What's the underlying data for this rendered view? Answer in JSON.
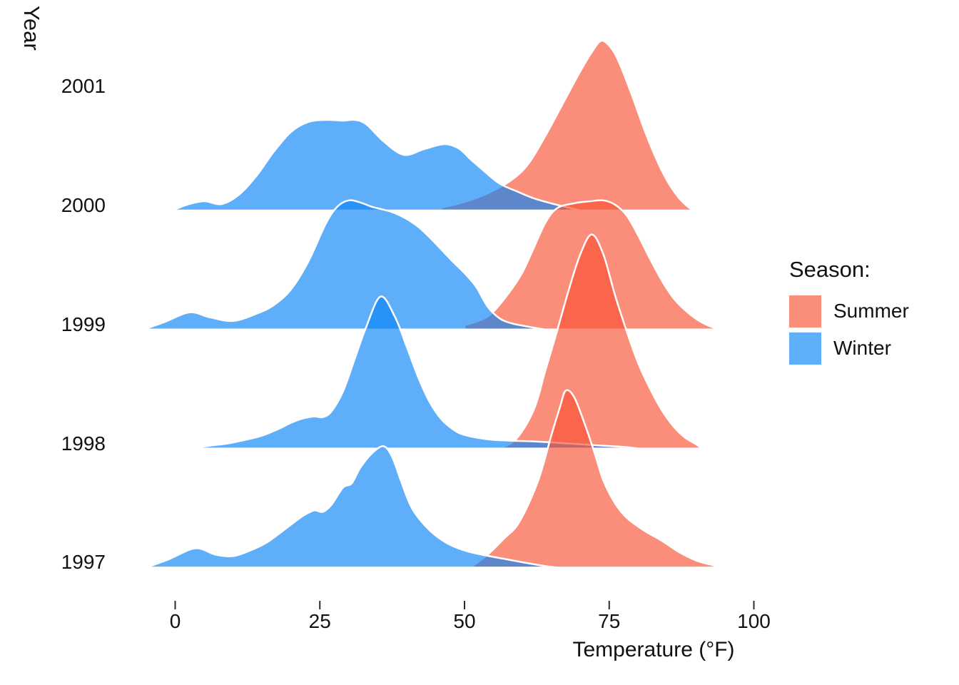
{
  "chart_data": {
    "type": "area",
    "variant": "ridgeline-density",
    "title": "",
    "xlabel": "Temperature (°F)",
    "ylabel": "Year",
    "x_ticks": [
      0,
      25,
      50,
      75,
      100
    ],
    "x_tick_labels": [
      "0",
      "25",
      "50",
      "75",
      "100"
    ],
    "xlim": [
      -8,
      102
    ],
    "y_ticks": [
      2001,
      2000,
      1999,
      1998,
      1997
    ],
    "grid": "off",
    "legend_position": "right",
    "legend": {
      "title": "Season:",
      "entries": [
        {
          "label": "Summer",
          "color": "#F95233"
        },
        {
          "label": "Winter",
          "color": "#0983F8"
        }
      ]
    },
    "height_units": "px-above-baseline",
    "series": [
      {
        "year": 2000,
        "season": "Summer",
        "points": [
          [
            46,
            4
          ],
          [
            50,
            12
          ],
          [
            54,
            24
          ],
          [
            58,
            42
          ],
          [
            61,
            65
          ],
          [
            64,
            105
          ],
          [
            67,
            150
          ],
          [
            70,
            195
          ],
          [
            72,
            222
          ],
          [
            73.7,
            238
          ],
          [
            75.5,
            226
          ],
          [
            77,
            202
          ],
          [
            79,
            160
          ],
          [
            81,
            115
          ],
          [
            83,
            75
          ],
          [
            85,
            42
          ],
          [
            87,
            18
          ],
          [
            88.5,
            6
          ],
          [
            89.5,
            0
          ]
        ]
      },
      {
        "year": 2000,
        "season": "Winter",
        "points": [
          [
            -0.5,
            0
          ],
          [
            2,
            8
          ],
          [
            5,
            13
          ],
          [
            8,
            9
          ],
          [
            11,
            22
          ],
          [
            14,
            48
          ],
          [
            17,
            82
          ],
          [
            20,
            110
          ],
          [
            23,
            124
          ],
          [
            26,
            127
          ],
          [
            29,
            126
          ],
          [
            31,
            127
          ],
          [
            33,
            121
          ],
          [
            36,
            97
          ],
          [
            39.5,
            78
          ],
          [
            43,
            86
          ],
          [
            46.5,
            93
          ],
          [
            49,
            87
          ],
          [
            51,
            72
          ],
          [
            53,
            58
          ],
          [
            56,
            38
          ],
          [
            59,
            27
          ],
          [
            62,
            17
          ],
          [
            65,
            10
          ],
          [
            68,
            4
          ],
          [
            70,
            0
          ]
        ]
      },
      {
        "year": 1999,
        "season": "Summer",
        "points": [
          [
            50,
            6
          ],
          [
            53,
            14
          ],
          [
            55,
            25
          ],
          [
            58,
            55
          ],
          [
            60,
            80
          ],
          [
            62,
            115
          ],
          [
            64,
            150
          ],
          [
            66,
            170
          ],
          [
            69,
            177
          ],
          [
            72,
            180
          ],
          [
            74,
            181
          ],
          [
            76,
            175
          ],
          [
            78,
            160
          ],
          [
            80,
            132
          ],
          [
            82,
            100
          ],
          [
            84,
            70
          ],
          [
            86,
            45
          ],
          [
            88,
            28
          ],
          [
            90,
            15
          ],
          [
            92,
            6
          ],
          [
            94,
            0
          ]
        ]
      },
      {
        "year": 1999,
        "season": "Winter",
        "points": [
          [
            -5.5,
            0
          ],
          [
            -2,
            10
          ],
          [
            2.5,
            24
          ],
          [
            6,
            17
          ],
          [
            10,
            12
          ],
          [
            14,
            22
          ],
          [
            17,
            34
          ],
          [
            20,
            56
          ],
          [
            23,
            95
          ],
          [
            26,
            148
          ],
          [
            28,
            172
          ],
          [
            30,
            181
          ],
          [
            32,
            178
          ],
          [
            34,
            172
          ],
          [
            36,
            168
          ],
          [
            38,
            163
          ],
          [
            40,
            155
          ],
          [
            42,
            144
          ],
          [
            44,
            129
          ],
          [
            46,
            112
          ],
          [
            48,
            95
          ],
          [
            50,
            79
          ],
          [
            52,
            60
          ],
          [
            54,
            32
          ],
          [
            56,
            16
          ],
          [
            58,
            9
          ],
          [
            61,
            4
          ],
          [
            64,
            0
          ]
        ]
      },
      {
        "year": 1998,
        "season": "Summer",
        "points": [
          [
            56,
            0
          ],
          [
            59,
            14
          ],
          [
            62,
            55
          ],
          [
            64,
            110
          ],
          [
            66,
            165
          ],
          [
            68,
            222
          ],
          [
            70,
            272
          ],
          [
            72,
            300
          ],
          [
            74,
            272
          ],
          [
            76,
            215
          ],
          [
            78,
            165
          ],
          [
            80,
            120
          ],
          [
            82,
            85
          ],
          [
            84,
            55
          ],
          [
            86,
            32
          ],
          [
            88,
            16
          ],
          [
            90,
            6
          ],
          [
            91,
            0
          ]
        ]
      },
      {
        "year": 1998,
        "season": "Winter",
        "points": [
          [
            2.5,
            0
          ],
          [
            6,
            4
          ],
          [
            9,
            7
          ],
          [
            12,
            12
          ],
          [
            15,
            18
          ],
          [
            18,
            28
          ],
          [
            20,
            36
          ],
          [
            22,
            42
          ],
          [
            24,
            45
          ],
          [
            25.5,
            44
          ],
          [
            27,
            52
          ],
          [
            29,
            80
          ],
          [
            31,
            125
          ],
          [
            33,
            170
          ],
          [
            35.5,
            213
          ],
          [
            38,
            184
          ],
          [
            40,
            143
          ],
          [
            42,
            100
          ],
          [
            44,
            65
          ],
          [
            46,
            41
          ],
          [
            48,
            27
          ],
          [
            50,
            19
          ],
          [
            54,
            13
          ],
          [
            58,
            11
          ],
          [
            62,
            10
          ],
          [
            66,
            8
          ],
          [
            70,
            6
          ],
          [
            74,
            4
          ],
          [
            78,
            2
          ],
          [
            80,
            0
          ]
        ]
      },
      {
        "year": 1997,
        "season": "Summer",
        "points": [
          [
            51,
            0
          ],
          [
            54,
            18
          ],
          [
            57,
            42
          ],
          [
            59,
            58
          ],
          [
            61,
            88
          ],
          [
            63,
            128
          ],
          [
            65,
            185
          ],
          [
            66.5,
            225
          ],
          [
            67.5,
            248
          ],
          [
            69,
            238
          ],
          [
            71,
            196
          ],
          [
            72.5,
            160
          ],
          [
            74,
            122
          ],
          [
            76,
            90
          ],
          [
            78,
            70
          ],
          [
            81,
            52
          ],
          [
            84,
            38
          ],
          [
            87,
            22
          ],
          [
            90,
            10
          ],
          [
            93,
            3
          ],
          [
            94,
            0
          ]
        ]
      },
      {
        "year": 1997,
        "season": "Winter",
        "points": [
          [
            -5,
            0
          ],
          [
            -1,
            12
          ],
          [
            3.5,
            27
          ],
          [
            7,
            18
          ],
          [
            10,
            16
          ],
          [
            13,
            24
          ],
          [
            16,
            36
          ],
          [
            20,
            60
          ],
          [
            22,
            72
          ],
          [
            24,
            80
          ],
          [
            25.5,
            78
          ],
          [
            27,
            88
          ],
          [
            29,
            112
          ],
          [
            30.5,
            118
          ],
          [
            32,
            140
          ],
          [
            34,
            160
          ],
          [
            36,
            170
          ],
          [
            37.5,
            155
          ],
          [
            39,
            122
          ],
          [
            41,
            82
          ],
          [
            44,
            52
          ],
          [
            47,
            34
          ],
          [
            50,
            24
          ],
          [
            53,
            18
          ],
          [
            57,
            12
          ],
          [
            61,
            6
          ],
          [
            64,
            2
          ],
          [
            66,
            0
          ]
        ]
      }
    ],
    "style": {
      "summer_fill": "#F95233",
      "winter_fill": "#0983F8",
      "fill_opacity": 0.65,
      "outline_color": "#FFFFFF",
      "outline_width": 2.5,
      "tick_color": "#2b2b2b",
      "text_color": "#111111"
    }
  }
}
